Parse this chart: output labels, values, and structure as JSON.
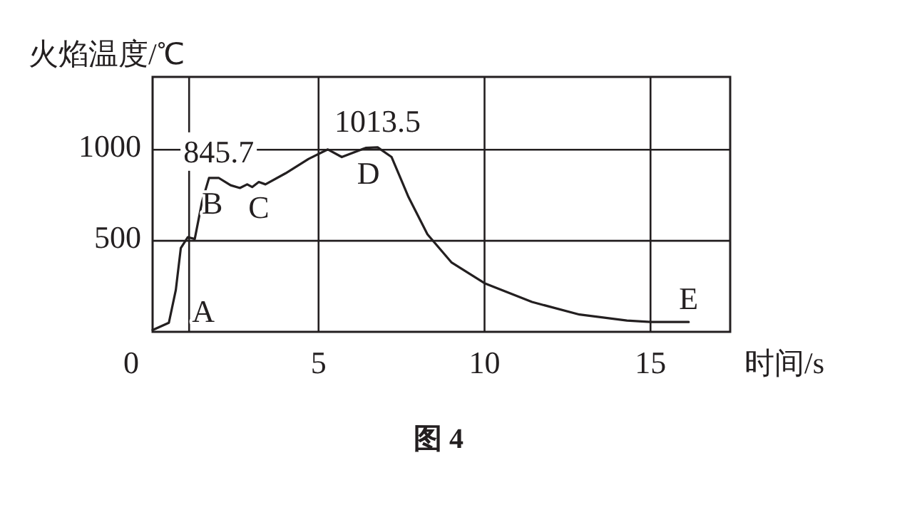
{
  "chart_data": {
    "type": "line",
    "ylabel": "火焰温度/℃",
    "xlabel": "时间/s",
    "x": [
      0,
      0.49,
      0.7,
      0.85,
      1.06,
      1.27,
      1.49,
      1.7,
      1.99,
      2.35,
      2.63,
      2.85,
      3.0,
      3.2,
      3.4,
      4.0,
      4.7,
      5.28,
      5.7,
      6.42,
      6.78,
      7.2,
      7.71,
      8.28,
      9.0,
      10.0,
      11.43,
      12.86,
      14.29,
      15.0,
      16.15
    ],
    "values": [
      10,
      50,
      230,
      460,
      520,
      510,
      715,
      845,
      845.7,
      805,
      790,
      810,
      795,
      823,
      810,
      870,
      950,
      1002,
      960,
      1010,
      1013.5,
      960,
      740,
      536,
      382,
      267,
      164,
      95,
      62,
      54,
      54
    ],
    "value_labels": [
      null,
      null,
      null,
      null,
      null,
      null,
      null,
      null,
      "845.7",
      null,
      null,
      null,
      null,
      null,
      null,
      null,
      null,
      null,
      null,
      null,
      "1013.5",
      null,
      null,
      null,
      null,
      null,
      null,
      null,
      null,
      null,
      null
    ],
    "color": "#231f20",
    "xlim": [
      0,
      17.4
    ],
    "ylim": [
      0,
      1400
    ],
    "xticks": [
      0,
      5,
      10,
      15
    ],
    "yticks": [
      500,
      1000
    ],
    "grid": true,
    "ref_lines": [
      {
        "axis": "x",
        "value": 1.1,
        "label": "A"
      }
    ],
    "annotations": [
      {
        "text": "B",
        "x": 1.8,
        "y": 845
      },
      {
        "text": "C",
        "x": 3.2,
        "y": 823
      },
      {
        "text": "D",
        "x": 6.5,
        "y": 1010
      },
      {
        "text": "E",
        "x": 16.15,
        "y": 54
      },
      "图 4"
    ]
  }
}
